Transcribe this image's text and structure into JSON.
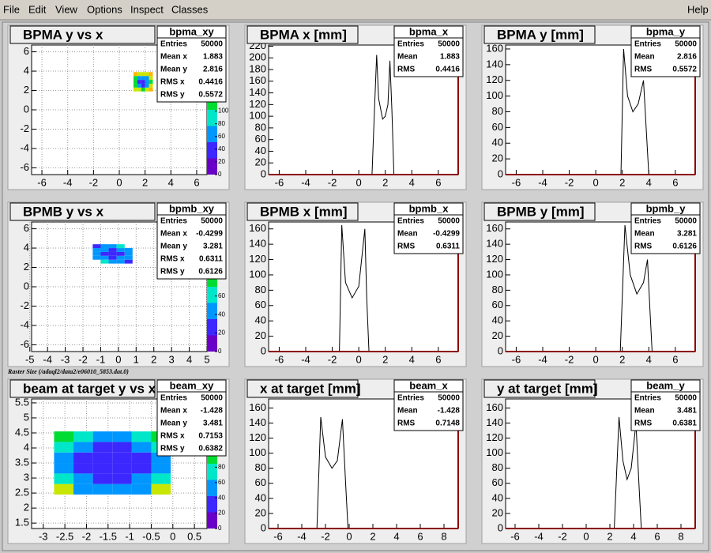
{
  "menu": [
    "File",
    "Edit",
    "View",
    "Options",
    "Inspect",
    "Classes"
  ],
  "menu_right": "Help",
  "caption": "Raster Size (/adaql2/data2/e06010_5853.dat.0)",
  "chart_data": [
    {
      "type": "heatmap",
      "title": "BPMA y vs x",
      "stats_name": "bpma_xy",
      "stats": [
        {
          "label": "Entries",
          "value": 50000
        },
        {
          "label": "Mean x",
          "value": 1.883
        },
        {
          "label": "Mean y",
          "value": 2.816
        },
        {
          "label": "RMS x",
          "value": 0.4416
        },
        {
          "label": "RMS y",
          "value": 0.5572
        }
      ],
      "xbins": [
        1.1,
        1.4,
        1.7,
        2.0,
        2.3,
        2.6
      ],
      "ybins": [
        1.9,
        2.3,
        2.7,
        3.1,
        3.5,
        3.9
      ],
      "counts": [
        [
          150,
          130,
          120,
          140,
          160
        ],
        [
          120,
          60,
          50,
          70,
          130
        ],
        [
          110,
          50,
          40,
          60,
          120
        ],
        [
          120,
          60,
          55,
          70,
          130
        ],
        [
          160,
          140,
          130,
          150,
          170
        ]
      ],
      "xlim": [
        -6.8,
        6.8
      ],
      "ylim": [
        -6.7,
        6.7
      ],
      "xticks": [
        -6,
        -4,
        -2,
        0,
        2,
        4,
        6
      ],
      "yticks": [
        -6,
        -4,
        -2,
        0,
        2,
        4,
        6
      ],
      "zlim": [
        0,
        204
      ],
      "zticks": [
        0,
        20,
        40,
        60,
        80,
        100
      ],
      "grid": true,
      "palette": [
        "#6a00c8",
        "#3c28ff",
        "#0096ff",
        "#00e6c8",
        "#00dc32",
        "#c8e600",
        "#ffb400",
        "#ff0000"
      ]
    },
    {
      "type": "line",
      "title": "BPMA x [mm]",
      "stats_name": "bpma_x",
      "stats": [
        {
          "label": "Entries",
          "value": 50000
        },
        {
          "label": "Mean",
          "value": 1.883
        },
        {
          "label": "RMS",
          "value": 0.4416
        }
      ],
      "x": [
        -6.8,
        1.0,
        1.2,
        1.35,
        1.5,
        1.8,
        2.0,
        2.2,
        2.35,
        2.5,
        2.65,
        7.5
      ],
      "values": [
        0,
        0,
        120,
        205,
        130,
        95,
        100,
        120,
        195,
        110,
        0,
        0
      ],
      "color": "#000000",
      "frame_color": "#8b0000",
      "xlim": [
        -6.8,
        7.5
      ],
      "ylim": [
        0,
        222
      ],
      "xticks": [
        -6,
        -4,
        -2,
        0,
        2,
        4,
        6
      ],
      "yticks": [
        0,
        20,
        40,
        60,
        80,
        100,
        120,
        140,
        160,
        180,
        200,
        220
      ]
    },
    {
      "type": "line",
      "title": "BPMA y [mm]",
      "stats_name": "bpma_y",
      "stats": [
        {
          "label": "Entries",
          "value": 50000
        },
        {
          "label": "Mean",
          "value": 2.816
        },
        {
          "label": "RMS",
          "value": 0.5572
        }
      ],
      "x": [
        -6.8,
        1.9,
        2.1,
        2.4,
        2.8,
        3.2,
        3.6,
        3.8,
        4.0,
        7.5
      ],
      "values": [
        0,
        0,
        160,
        100,
        80,
        90,
        120,
        60,
        0,
        0
      ],
      "color": "#000000",
      "frame_color": "#8b0000",
      "xlim": [
        -6.8,
        7.5
      ],
      "ylim": [
        0,
        165
      ],
      "xticks": [
        -6,
        -4,
        -2,
        0,
        2,
        4,
        6
      ],
      "yticks": [
        0,
        20,
        40,
        60,
        80,
        100,
        120,
        140,
        160
      ]
    },
    {
      "type": "heatmap",
      "title": "BPMB y vs x",
      "stats_name": "bpmb_xy",
      "stats": [
        {
          "label": "Entries",
          "value": 50000
        },
        {
          "label": "Mean x",
          "value": -0.4299
        },
        {
          "label": "Mean y",
          "value": 3.281
        },
        {
          "label": "RMS x",
          "value": 0.6311
        },
        {
          "label": "RMS y",
          "value": 0.6126
        }
      ],
      "xbins": [
        -1.45,
        -1.0,
        -0.55,
        -0.1,
        0.35,
        0.8
      ],
      "ybins": [
        2.4,
        2.8,
        3.2,
        3.6,
        4.0,
        4.4
      ],
      "counts": [
        [
          0,
          60,
          50,
          40,
          30
        ],
        [
          50,
          40,
          30,
          35,
          40
        ],
        [
          45,
          30,
          20,
          30,
          45
        ],
        [
          40,
          35,
          30,
          40,
          50
        ],
        [
          30,
          40,
          50,
          60,
          0
        ]
      ],
      "xlim": [
        -4.9,
        5
      ],
      "ylim": [
        -6.7,
        6.7
      ],
      "xticks": [
        -5,
        -4,
        -3,
        -2,
        -1,
        0,
        1,
        2,
        3,
        4,
        5
      ],
      "yticks": [
        -6,
        -4,
        -2,
        0,
        2,
        4,
        6
      ],
      "zlim": [
        0,
        140
      ],
      "zticks": [
        0,
        20,
        40,
        60
      ],
      "grid": true,
      "palette": [
        "#6a00c8",
        "#3c28ff",
        "#0096ff",
        "#00e6c8",
        "#00dc32",
        "#c8e600",
        "#ffb400",
        "#ff0000"
      ]
    },
    {
      "type": "line",
      "title": "BPMB x [mm]",
      "stats_name": "bpmb_x",
      "stats": [
        {
          "label": "Entries",
          "value": 50000
        },
        {
          "label": "Mean",
          "value": -0.4299
        },
        {
          "label": "RMS",
          "value": 0.6311
        }
      ],
      "x": [
        -6.8,
        -1.46,
        -1.28,
        -1.0,
        -0.5,
        0.0,
        0.46,
        0.6,
        0.77,
        7.5
      ],
      "values": [
        0,
        0,
        165,
        90,
        70,
        85,
        160,
        70,
        0,
        0
      ],
      "color": "#000000",
      "frame_color": "#8b0000",
      "xlim": [
        -6.8,
        7.5
      ],
      "ylim": [
        0,
        169
      ],
      "xticks": [
        -6,
        -4,
        -2,
        0,
        2,
        4,
        6
      ],
      "yticks": [
        0,
        20,
        40,
        60,
        80,
        100,
        120,
        140,
        160
      ]
    },
    {
      "type": "line",
      "title": "BPMB y [mm]",
      "stats_name": "bpmb_y",
      "stats": [
        {
          "label": "Entries",
          "value": 50000
        },
        {
          "label": "Mean",
          "value": 3.281
        },
        {
          "label": "RMS",
          "value": 0.6126
        }
      ],
      "x": [
        -6.8,
        1.85,
        2.2,
        2.6,
        3.1,
        3.6,
        3.9,
        4.1,
        4.25,
        7.5
      ],
      "values": [
        0,
        0,
        165,
        100,
        75,
        90,
        120,
        50,
        0,
        0
      ],
      "color": "#000000",
      "frame_color": "#8b0000",
      "xlim": [
        -6.8,
        7.5
      ],
      "ylim": [
        0,
        169
      ],
      "xticks": [
        -6,
        -4,
        -2,
        0,
        2,
        4,
        6
      ],
      "yticks": [
        0,
        20,
        40,
        60,
        80,
        100,
        120,
        140,
        160
      ]
    },
    {
      "type": "heatmap",
      "title": "beam at target y vs x",
      "stats_name": "beam_xy",
      "stats": [
        {
          "label": "Entries",
          "value": 50000
        },
        {
          "label": "Mean x",
          "value": -1.428
        },
        {
          "label": "Mean y",
          "value": 3.481
        },
        {
          "label": "RMS x",
          "value": 0.7153
        },
        {
          "label": "RMS y",
          "value": 0.6382
        }
      ],
      "xbins": [
        -2.75,
        -2.3,
        -1.85,
        -1.4,
        -0.95,
        -0.5,
        -0.05
      ],
      "ybins": [
        2.45,
        2.8,
        3.15,
        3.5,
        3.85,
        4.2,
        4.55
      ],
      "counts": [
        [
          120,
          60,
          50,
          50,
          60,
          120
        ],
        [
          70,
          50,
          40,
          40,
          50,
          80
        ],
        [
          60,
          40,
          30,
          30,
          40,
          60
        ],
        [
          60,
          40,
          30,
          35,
          40,
          60
        ],
        [
          70,
          45,
          40,
          40,
          45,
          70
        ],
        [
          90,
          70,
          60,
          60,
          70,
          100
        ]
      ],
      "xlim": [
        -3.27,
        0.79
      ],
      "ylim": [
        1.32,
        5.63
      ],
      "xticks": [
        -3,
        -2.5,
        -2,
        -1.5,
        -1,
        -0.5,
        0,
        0.5
      ],
      "yticks": [
        1.5,
        2,
        2.5,
        3,
        3.5,
        4,
        4.5,
        5,
        5.5
      ],
      "zlim": [
        0,
        169
      ],
      "zticks": [
        0,
        20,
        40,
        60,
        80
      ],
      "grid": true,
      "palette": [
        "#6a00c8",
        "#3c28ff",
        "#0096ff",
        "#00e6c8",
        "#00dc32",
        "#c8e600",
        "#ffb400",
        "#ff0000"
      ]
    },
    {
      "type": "line",
      "title": "x at target [mm]",
      "stats_name": "beam_x",
      "stats": [
        {
          "label": "Entries",
          "value": 50000
        },
        {
          "label": "Mean",
          "value": -1.428
        },
        {
          "label": "RMS",
          "value": 0.7148
        }
      ],
      "x": [
        -6.8,
        -2.72,
        -2.4,
        -2.0,
        -1.45,
        -1.0,
        -0.57,
        -0.3,
        -0.1,
        9.2
      ],
      "values": [
        0,
        0,
        148,
        95,
        80,
        90,
        145,
        60,
        0,
        0
      ],
      "color": "#000000",
      "frame_color": "#8b0000",
      "xlim": [
        -6.8,
        9.2
      ],
      "ylim": [
        0,
        172
      ],
      "xticks": [
        -6,
        -4,
        -2,
        0,
        2,
        4,
        6,
        8
      ],
      "yticks": [
        0,
        20,
        40,
        60,
        80,
        100,
        120,
        140,
        160
      ]
    },
    {
      "type": "line",
      "title": "y at target [mm]",
      "stats_name": "beam_y",
      "stats": [
        {
          "label": "Entries",
          "value": 50000
        },
        {
          "label": "Mean",
          "value": 3.481
        },
        {
          "label": "RMS",
          "value": 0.6381
        }
      ],
      "x": [
        -6.8,
        2.37,
        2.77,
        3.1,
        3.45,
        3.8,
        4.2,
        4.45,
        4.65,
        9.2
      ],
      "values": [
        0,
        0,
        148,
        90,
        65,
        80,
        140,
        60,
        0,
        0
      ],
      "color": "#000000",
      "frame_color": "#8b0000",
      "xlim": [
        -6.8,
        9.2
      ],
      "ylim": [
        0,
        172
      ],
      "xticks": [
        -6,
        -4,
        -2,
        0,
        2,
        4,
        6,
        8
      ],
      "yticks": [
        0,
        20,
        40,
        60,
        80,
        100,
        120,
        140,
        160
      ]
    }
  ]
}
